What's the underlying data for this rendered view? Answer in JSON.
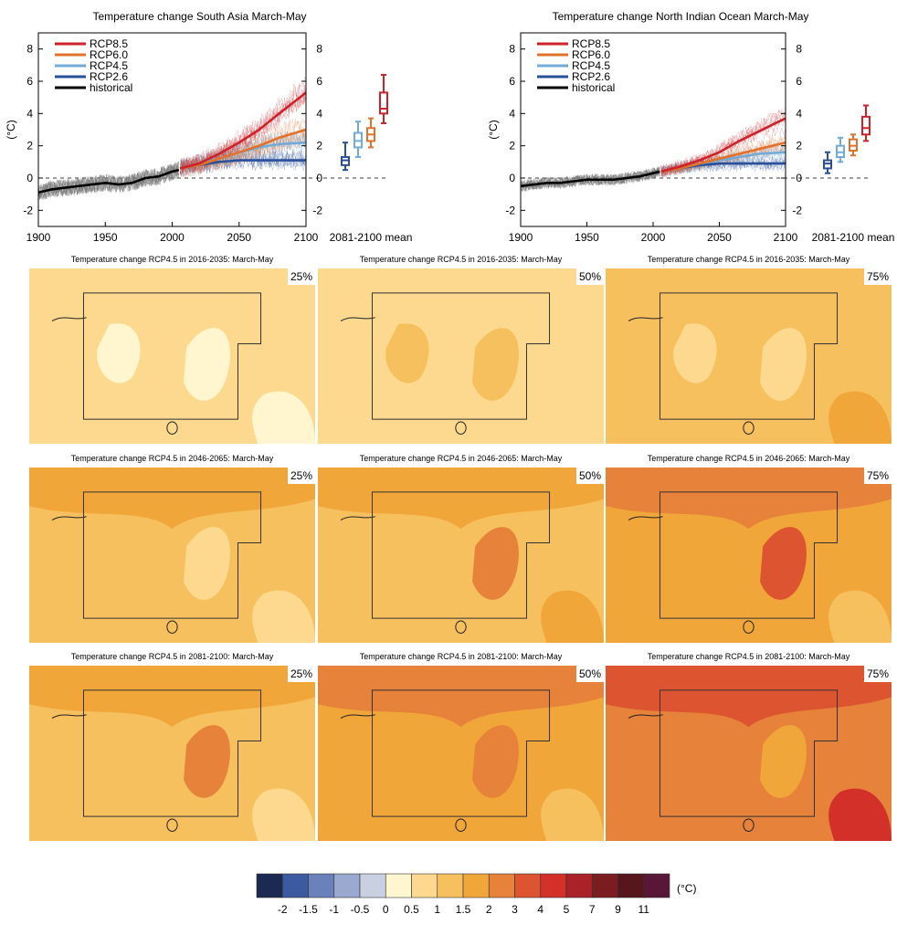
{
  "chart_data": [
    {
      "type": "line",
      "title": "Temperature change South Asia March-May",
      "ylabel": "(°C)",
      "xlabel": "",
      "xlim": [
        1900,
        2100
      ],
      "ylim": [
        -3,
        9
      ],
      "xticks": [
        1900,
        1950,
        2000,
        2050,
        2100
      ],
      "yticks": [
        -2,
        0,
        2,
        4,
        6,
        8
      ],
      "legend_position": "top-left",
      "series": [
        {
          "name": "RCP8.5",
          "color": "#cc2229",
          "x": [
            2006,
            2020,
            2035,
            2050,
            2065,
            2080,
            2100
          ],
          "values": [
            0.6,
            0.9,
            1.5,
            2.2,
            3.0,
            4.0,
            5.3
          ]
        },
        {
          "name": "RCP6.0",
          "color": "#e1712b",
          "x": [
            2006,
            2020,
            2035,
            2050,
            2065,
            2080,
            2100
          ],
          "values": [
            0.6,
            0.8,
            1.2,
            1.6,
            2.0,
            2.5,
            3.0
          ]
        },
        {
          "name": "RCP4.5",
          "color": "#72aad8",
          "x": [
            2006,
            2020,
            2035,
            2050,
            2065,
            2080,
            2100
          ],
          "values": [
            0.6,
            0.9,
            1.2,
            1.6,
            1.9,
            2.1,
            2.2
          ]
        },
        {
          "name": "RCP2.6",
          "color": "#2a4f9a",
          "x": [
            2006,
            2020,
            2035,
            2050,
            2065,
            2080,
            2100
          ],
          "values": [
            0.6,
            0.8,
            1.0,
            1.1,
            1.1,
            1.1,
            1.1
          ]
        },
        {
          "name": "historical",
          "color": "#000000",
          "x": [
            1900,
            1910,
            1920,
            1930,
            1940,
            1950,
            1960,
            1970,
            1980,
            1990,
            2000,
            2005
          ],
          "values": [
            -0.9,
            -0.7,
            -0.6,
            -0.5,
            -0.4,
            -0.3,
            -0.4,
            -0.3,
            0.0,
            0.1,
            0.4,
            0.5
          ]
        }
      ],
      "boxplot_label": "2081-2100 mean",
      "boxplots": [
        {
          "name": "RCP2.6",
          "color": "#2a4f9a",
          "min": 0.5,
          "q1": 0.8,
          "median": 1.1,
          "q3": 1.3,
          "max": 2.2
        },
        {
          "name": "RCP4.5",
          "color": "#72aad8",
          "min": 1.3,
          "q1": 1.9,
          "median": 2.3,
          "q3": 2.8,
          "max": 3.5
        },
        {
          "name": "RCP6.0",
          "color": "#e1712b",
          "min": 1.9,
          "q1": 2.3,
          "median": 2.7,
          "q3": 3.1,
          "max": 3.7
        },
        {
          "name": "RCP8.5",
          "color": "#cc2229",
          "min": 3.4,
          "q1": 4.0,
          "median": 4.3,
          "q3": 5.3,
          "max": 6.4
        }
      ]
    },
    {
      "type": "line",
      "title": "Temperature change North Indian Ocean March-May",
      "ylabel": "(°C)",
      "xlabel": "",
      "xlim": [
        1900,
        2100
      ],
      "ylim": [
        -3,
        9
      ],
      "xticks": [
        1900,
        1950,
        2000,
        2050,
        2100
      ],
      "yticks": [
        -2,
        0,
        2,
        4,
        6,
        8
      ],
      "legend_position": "top-left",
      "series": [
        {
          "name": "RCP8.5",
          "color": "#cc2229",
          "x": [
            2006,
            2020,
            2035,
            2050,
            2065,
            2080,
            2100
          ],
          "values": [
            0.4,
            0.7,
            1.1,
            1.6,
            2.3,
            2.9,
            3.7
          ]
        },
        {
          "name": "RCP6.0",
          "color": "#e1712b",
          "x": [
            2006,
            2020,
            2035,
            2050,
            2065,
            2080,
            2100
          ],
          "values": [
            0.4,
            0.6,
            0.9,
            1.2,
            1.5,
            1.8,
            2.2
          ]
        },
        {
          "name": "RCP4.5",
          "color": "#72aad8",
          "x": [
            2006,
            2020,
            2035,
            2050,
            2065,
            2080,
            2100
          ],
          "values": [
            0.4,
            0.6,
            0.9,
            1.1,
            1.3,
            1.5,
            1.6
          ]
        },
        {
          "name": "RCP2.6",
          "color": "#2a4f9a",
          "x": [
            2006,
            2020,
            2035,
            2050,
            2065,
            2080,
            2100
          ],
          "values": [
            0.4,
            0.6,
            0.8,
            0.9,
            0.9,
            0.9,
            0.9
          ]
        },
        {
          "name": "historical",
          "color": "#000000",
          "x": [
            1900,
            1910,
            1920,
            1930,
            1940,
            1950,
            1960,
            1970,
            1980,
            1990,
            2000,
            2005
          ],
          "values": [
            -0.5,
            -0.4,
            -0.3,
            -0.3,
            -0.2,
            -0.1,
            -0.1,
            -0.1,
            0.0,
            0.1,
            0.3,
            0.4
          ]
        }
      ],
      "boxplot_label": "2081-2100 mean",
      "boxplots": [
        {
          "name": "RCP2.6",
          "color": "#2a4f9a",
          "min": 0.3,
          "q1": 0.6,
          "median": 0.9,
          "q3": 1.1,
          "max": 1.6
        },
        {
          "name": "RCP4.5",
          "color": "#72aad8",
          "min": 1.0,
          "q1": 1.3,
          "median": 1.6,
          "q3": 2.0,
          "max": 2.5
        },
        {
          "name": "RCP6.0",
          "color": "#e1712b",
          "min": 1.4,
          "q1": 1.7,
          "median": 2.0,
          "q3": 2.4,
          "max": 2.7
        },
        {
          "name": "RCP8.5",
          "color": "#cc2229",
          "min": 2.3,
          "q1": 2.7,
          "median": 3.1,
          "q3": 3.8,
          "max": 4.5
        }
      ]
    },
    {
      "type": "heatmap",
      "colorbar": {
        "unit": "(°C)",
        "labels": [
          "-2",
          "-1.5",
          "-1",
          "-0.5",
          "0",
          "0.5",
          "1",
          "1.5",
          "2",
          "3",
          "4",
          "5",
          "7",
          "9",
          "11"
        ],
        "colors": [
          "#1c2950",
          "#3c5aa0",
          "#6a81b9",
          "#99a9cf",
          "#c9d0e2",
          "#fff5cf",
          "#fcd98e",
          "#f7c05f",
          "#f1a63a",
          "#e6823a",
          "#dc5530",
          "#d23029",
          "#a92228",
          "#7b1c20",
          "#56161b",
          "#581737"
        ]
      },
      "maps": [
        {
          "title": "Temperature change RCP4.5 in 2016-2035: March-May",
          "percentile": "25%",
          "base": "#fcd98e",
          "patches": [
            {
              "color": "#fff5cf"
            },
            {
              "color": "#fff5cf"
            },
            {
              "color": "#fff5cf"
            }
          ]
        },
        {
          "title": "Temperature change RCP4.5 in 2016-2035: March-May",
          "percentile": "50%",
          "base": "#fcd98e",
          "patches": [
            {
              "color": "#f7c05f"
            },
            {
              "color": "#f7c05f"
            }
          ]
        },
        {
          "title": "Temperature change RCP4.5 in 2016-2035: March-May",
          "percentile": "75%",
          "base": "#f7c05f",
          "patches": [
            {
              "color": "#fcd98e"
            },
            {
              "color": "#fcd98e"
            },
            {
              "color": "#f1a63a"
            }
          ]
        },
        {
          "title": "Temperature change RCP4.5 in 2046-2065: March-May",
          "percentile": "25%",
          "base": "#f7c05f",
          "patches": [
            {
              "color": "#f1a63a"
            },
            {
              "color": "#fcd98e"
            },
            {
              "color": "#fcd98e"
            }
          ]
        },
        {
          "title": "Temperature change RCP4.5 in 2046-2065: March-May",
          "percentile": "50%",
          "base": "#f7c05f",
          "patches": [
            {
              "color": "#f1a63a"
            },
            {
              "color": "#e6823a"
            },
            {
              "color": "#f1a63a"
            }
          ]
        },
        {
          "title": "Temperature change RCP4.5 in 2046-2065: March-May",
          "percentile": "75%",
          "base": "#f1a63a",
          "patches": [
            {
              "color": "#e6823a"
            },
            {
              "color": "#dc5530"
            },
            {
              "color": "#f7c05f"
            }
          ]
        },
        {
          "title": "Temperature change RCP4.5 in 2081-2100: March-May",
          "percentile": "25%",
          "base": "#f7c05f",
          "patches": [
            {
              "color": "#f1a63a"
            },
            {
              "color": "#e6823a"
            },
            {
              "color": "#fcd98e"
            }
          ]
        },
        {
          "title": "Temperature change RCP4.5 in 2081-2100: March-May",
          "percentile": "50%",
          "base": "#f1a63a",
          "patches": [
            {
              "color": "#e6823a"
            },
            {
              "color": "#e6823a"
            },
            {
              "color": "#f7c05f"
            }
          ]
        },
        {
          "title": "Temperature change RCP4.5 in 2081-2100: March-May",
          "percentile": "75%",
          "base": "#e6823a",
          "patches": [
            {
              "color": "#dc5530"
            },
            {
              "color": "#f1a63a"
            },
            {
              "color": "#d23029"
            }
          ]
        }
      ]
    }
  ]
}
